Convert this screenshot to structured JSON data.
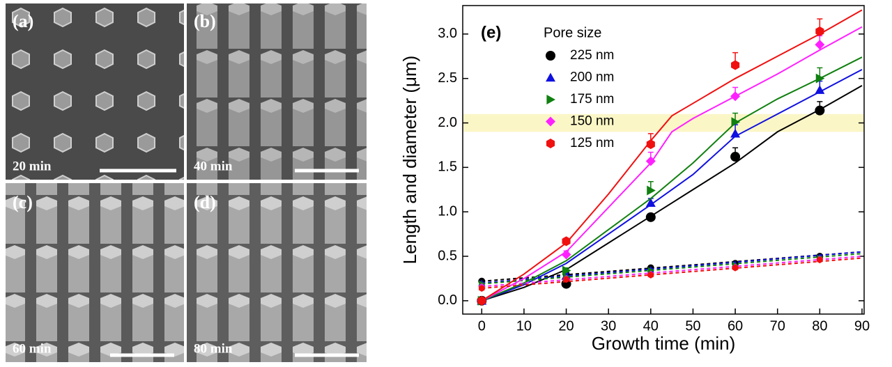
{
  "panels": [
    {
      "label": "(a)",
      "time": "20 min"
    },
    {
      "label": "(b)",
      "time": "40 min"
    },
    {
      "label": "(c)",
      "time": "60 min"
    },
    {
      "label": "(d)",
      "time": "80 min"
    }
  ],
  "chart_data": {
    "type": "scatter",
    "panel_label": "(e)",
    "x_label": "Growth time (min)",
    "y_label": "Length and diameter (μm)",
    "legend_title": "Pore size",
    "xlim": [
      -4.5,
      90.5
    ],
    "ylim": [
      -0.15,
      3.32
    ],
    "xticks": [
      0,
      10,
      20,
      30,
      40,
      50,
      60,
      70,
      80,
      90
    ],
    "yticks": [
      {
        "value": 0,
        "label": "0.0"
      },
      0.5,
      {
        "value": 1,
        "label": "1.0"
      },
      1.5,
      {
        "value": 2,
        "label": "2.0"
      },
      2.5,
      {
        "value": 3,
        "label": "3.0"
      }
    ],
    "band": [
      1.9,
      2.1
    ],
    "band_color": "#fbf6c6",
    "x": [
      0,
      20,
      40,
      60,
      80
    ],
    "fit_x": [
      0,
      10,
      20,
      30,
      40,
      45,
      50,
      60,
      70,
      80,
      90
    ],
    "dashed_x": [
      0,
      90
    ],
    "series": [
      {
        "name": "225 nm",
        "color": "#000000",
        "marker": "circle",
        "values": [
          0.0,
          0.19,
          0.94,
          1.62,
          2.14
        ],
        "errors": [
          0.02,
          0.03,
          0.03,
          0.1,
          0.1
        ],
        "diameter": [
          0.22,
          0.3,
          0.37,
          0.42,
          0.5
        ],
        "fit": [
          0,
          0.15,
          0.35,
          0.65,
          0.95,
          1.1,
          1.25,
          1.55,
          1.9,
          2.15,
          2.42
        ],
        "dashed": [
          0.22,
          0.55
        ]
      },
      {
        "name": "200 nm",
        "color": "#1010e0",
        "marker": "triangle",
        "values": [
          0.0,
          0.28,
          1.1,
          1.88,
          2.37
        ],
        "errors": [
          0.02,
          0.03,
          0.05,
          0.1,
          0.1
        ],
        "diameter": [
          0.2,
          0.28,
          0.35,
          0.41,
          0.49
        ],
        "fit": [
          0,
          0.18,
          0.42,
          0.75,
          1.08,
          1.25,
          1.42,
          1.85,
          2.1,
          2.35,
          2.6
        ],
        "dashed": [
          0.2,
          0.55
        ]
      },
      {
        "name": "175 nm",
        "color": "#108010",
        "marker": "triangle-right",
        "values": [
          0.0,
          0.34,
          1.24,
          2.01,
          2.5
        ],
        "errors": [
          0.02,
          0.03,
          0.1,
          0.1,
          0.12
        ],
        "diameter": [
          0.19,
          0.27,
          0.34,
          0.4,
          0.48
        ],
        "fit": [
          0,
          0.2,
          0.45,
          0.8,
          1.15,
          1.35,
          1.55,
          2.0,
          2.27,
          2.5,
          2.74
        ],
        "dashed": [
          0.19,
          0.53
        ]
      },
      {
        "name": "150 nm",
        "color": "#ff20ff",
        "marker": "diamond",
        "values": [
          0.0,
          0.52,
          1.57,
          2.3,
          2.88
        ],
        "errors": [
          0.02,
          0.04,
          0.1,
          0.1,
          0.1
        ],
        "diameter": [
          0.16,
          0.25,
          0.3,
          0.38,
          0.47
        ],
        "fit": [
          0,
          0.25,
          0.55,
          1.05,
          1.55,
          1.9,
          2.05,
          2.3,
          2.55,
          2.82,
          3.08
        ],
        "dashed": [
          0.16,
          0.5
        ]
      },
      {
        "name": "125 nm",
        "color": "#f01010",
        "marker": "hexagon",
        "values": [
          0.0,
          0.67,
          1.76,
          2.65,
          3.03
        ],
        "errors": [
          0.02,
          0.03,
          0.12,
          0.14,
          0.14
        ],
        "diameter": [
          0.14,
          0.24,
          0.29,
          0.37,
          0.46
        ],
        "fit": [
          0,
          0.3,
          0.65,
          1.2,
          1.8,
          2.08,
          2.22,
          2.5,
          2.75,
          3.0,
          3.27
        ],
        "dashed": [
          0.14,
          0.48
        ]
      }
    ]
  }
}
